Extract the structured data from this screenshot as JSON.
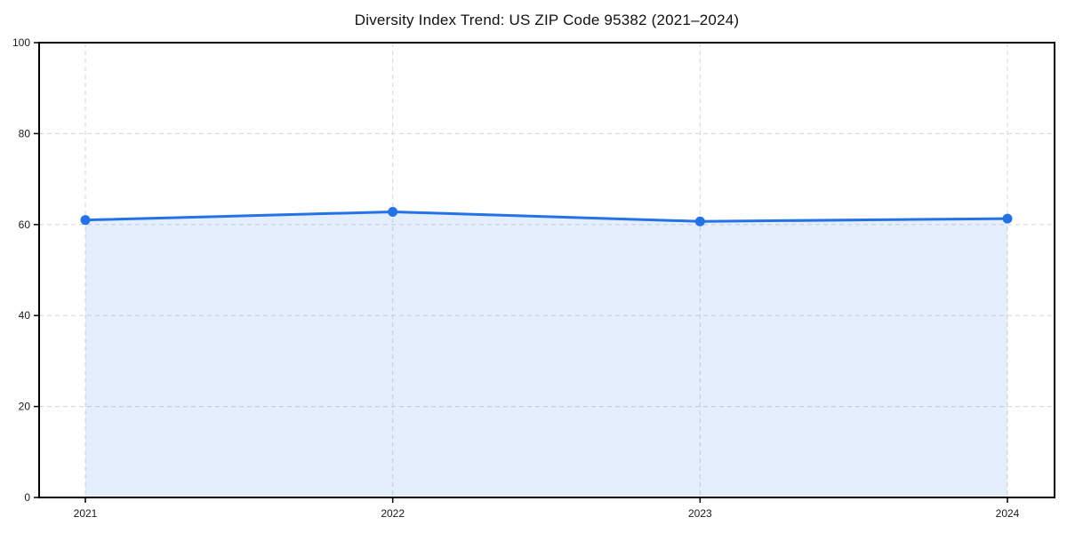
{
  "chart_data": {
    "type": "line",
    "title": "Diversity Index Trend: US ZIP Code 95382 (2021–2024)",
    "x": [
      "2021",
      "2022",
      "2023",
      "2024"
    ],
    "series": [
      {
        "name": "Diversity Index",
        "values": [
          61.0,
          62.8,
          60.7,
          61.3
        ]
      }
    ],
    "xlabel": "",
    "ylabel": "",
    "ylim": [
      0,
      100
    ],
    "yticks": [
      0,
      20,
      40,
      60,
      80,
      100
    ],
    "grid": true,
    "grid_style": "dashed",
    "legend": "none",
    "area_fill": true,
    "colors": {
      "line": "#2472e8",
      "marker": "#2472e8",
      "fill": "rgba(36,114,232,0.12)",
      "grid": "#dcdcdc",
      "spine": "#000000",
      "tick_text": "#1a1a1a",
      "background": "#ffffff"
    }
  }
}
